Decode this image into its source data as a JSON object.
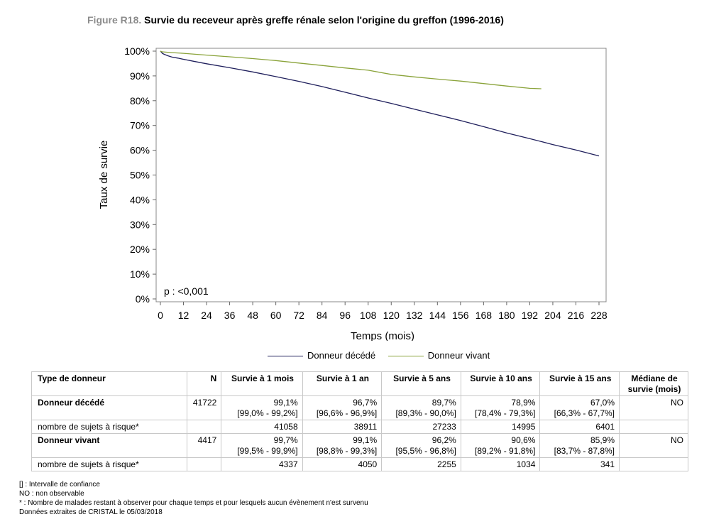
{
  "figure": {
    "label": "Figure R18.",
    "title": "Survie du receveur après greffe rénale selon l'origine du greffon (1996-2016)"
  },
  "chart_data": {
    "type": "line",
    "title": "",
    "xlabel": "Temps (mois)",
    "ylabel": "Taux de survie",
    "xlim": [
      0,
      228
    ],
    "ylim": [
      0,
      100
    ],
    "x_ticks": [
      "0",
      "12",
      "24",
      "36",
      "48",
      "60",
      "72",
      "84",
      "96",
      "108",
      "120",
      "132",
      "144",
      "156",
      "168",
      "180",
      "192",
      "204",
      "216",
      "228"
    ],
    "y_ticks": [
      "100%",
      "90%",
      "80%",
      "70%",
      "60%",
      "50%",
      "40%",
      "30%",
      "20%",
      "10%",
      "0%"
    ],
    "annotation": "p : <0,001",
    "legend_position": "bottom",
    "grid": false,
    "series": [
      {
        "name": "Donneur décédé",
        "color": "#1f1f5c",
        "x": [
          0,
          0.5,
          1,
          2,
          4,
          6,
          9,
          12,
          18,
          24,
          36,
          48,
          60,
          72,
          84,
          96,
          108,
          120,
          132,
          144,
          156,
          168,
          180,
          192,
          204,
          216,
          228
        ],
        "y": [
          100,
          99.6,
          99.1,
          98.7,
          98.1,
          97.6,
          97.2,
          96.7,
          95.8,
          94.9,
          93.3,
          91.6,
          89.7,
          87.8,
          85.7,
          83.4,
          81.1,
          78.9,
          76.6,
          74.3,
          72.0,
          69.5,
          67.0,
          64.7,
          62.3,
          60.1,
          57.7
        ]
      },
      {
        "name": "Donneur vivant",
        "color": "#8aa33a",
        "x": [
          0,
          1,
          6,
          12,
          24,
          36,
          48,
          60,
          72,
          84,
          96,
          108,
          120,
          132,
          144,
          156,
          168,
          180,
          192,
          198
        ],
        "y": [
          100,
          99.7,
          99.4,
          99.1,
          98.4,
          97.7,
          97.0,
          96.2,
          95.2,
          94.2,
          93.2,
          92.3,
          90.6,
          89.6,
          88.7,
          87.9,
          86.9,
          85.9,
          85.0,
          84.8
        ]
      }
    ]
  },
  "table": {
    "headers": [
      "Type de donneur",
      "N",
      "Survie à 1 mois",
      "Survie à 1 an",
      "Survie à 5 ans",
      "Survie à 10 ans",
      "Survie à 15 ans",
      "Médiane de survie (mois)"
    ],
    "rows": [
      {
        "type": "Donneur décédé",
        "n": "41722",
        "values": [
          "99,1%",
          "96,7%",
          "89,7%",
          "78,9%",
          "67,0%"
        ],
        "ci": [
          "[99,0% - 99,2%]",
          "[96,6% - 96,9%]",
          "[89,3% - 90,0%]",
          "[78,4% - 79,3%]",
          "[66,3% - 67,7%]"
        ],
        "median": "NO",
        "risk_label": "nombre de sujets à risque*",
        "risk": [
          "41058",
          "38911",
          "27233",
          "14995",
          "6401"
        ]
      },
      {
        "type": "Donneur vivant",
        "n": "4417",
        "values": [
          "99,7%",
          "99,1%",
          "96,2%",
          "90,6%",
          "85,9%"
        ],
        "ci": [
          "[99,5% - 99,9%]",
          "[98,8% - 99,3%]",
          "[95,5% - 96,8%]",
          "[89,2% - 91,8%]",
          "[83,7% - 87,8%]"
        ],
        "median": "NO",
        "risk_label": "nombre de sujets à risque*",
        "risk": [
          "4337",
          "4050",
          "2255",
          "1034",
          "341"
        ]
      }
    ]
  },
  "notes": [
    "[] : Intervalle de confiance",
    "NO : non observable",
    "* : Nombre de malades restant à observer pour chaque temps et pour lesquels aucun évènement n'est survenu",
    "Données extraites de CRISTAL le 05/03/2018"
  ]
}
